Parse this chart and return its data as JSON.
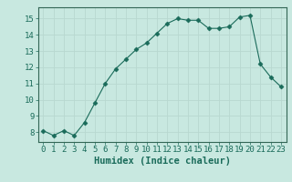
{
  "x": [
    0,
    1,
    2,
    3,
    4,
    5,
    6,
    7,
    8,
    9,
    10,
    11,
    12,
    13,
    14,
    15,
    16,
    17,
    18,
    19,
    20,
    21,
    22,
    23
  ],
  "y": [
    8.1,
    7.8,
    8.1,
    7.8,
    8.6,
    9.8,
    11.0,
    11.9,
    12.5,
    13.1,
    13.5,
    14.1,
    14.7,
    15.0,
    14.9,
    14.9,
    14.4,
    14.4,
    14.5,
    15.1,
    15.2,
    12.2,
    11.4,
    10.8
  ],
  "line_color": "#1a6b5a",
  "marker": "D",
  "marker_size": 2.5,
  "bg_color": "#c8e8e0",
  "grid_color": "#b8d8d0",
  "xlabel": "Humidex (Indice chaleur)",
  "xlim": [
    -0.5,
    23.5
  ],
  "ylim": [
    7.4,
    15.7
  ],
  "xticks": [
    0,
    1,
    2,
    3,
    4,
    5,
    6,
    7,
    8,
    9,
    10,
    11,
    12,
    13,
    14,
    15,
    16,
    17,
    18,
    19,
    20,
    21,
    22,
    23
  ],
  "yticks": [
    8,
    9,
    10,
    11,
    12,
    13,
    14,
    15
  ],
  "tick_fontsize": 6.5,
  "xlabel_fontsize": 7.5,
  "spine_color": "#336655"
}
